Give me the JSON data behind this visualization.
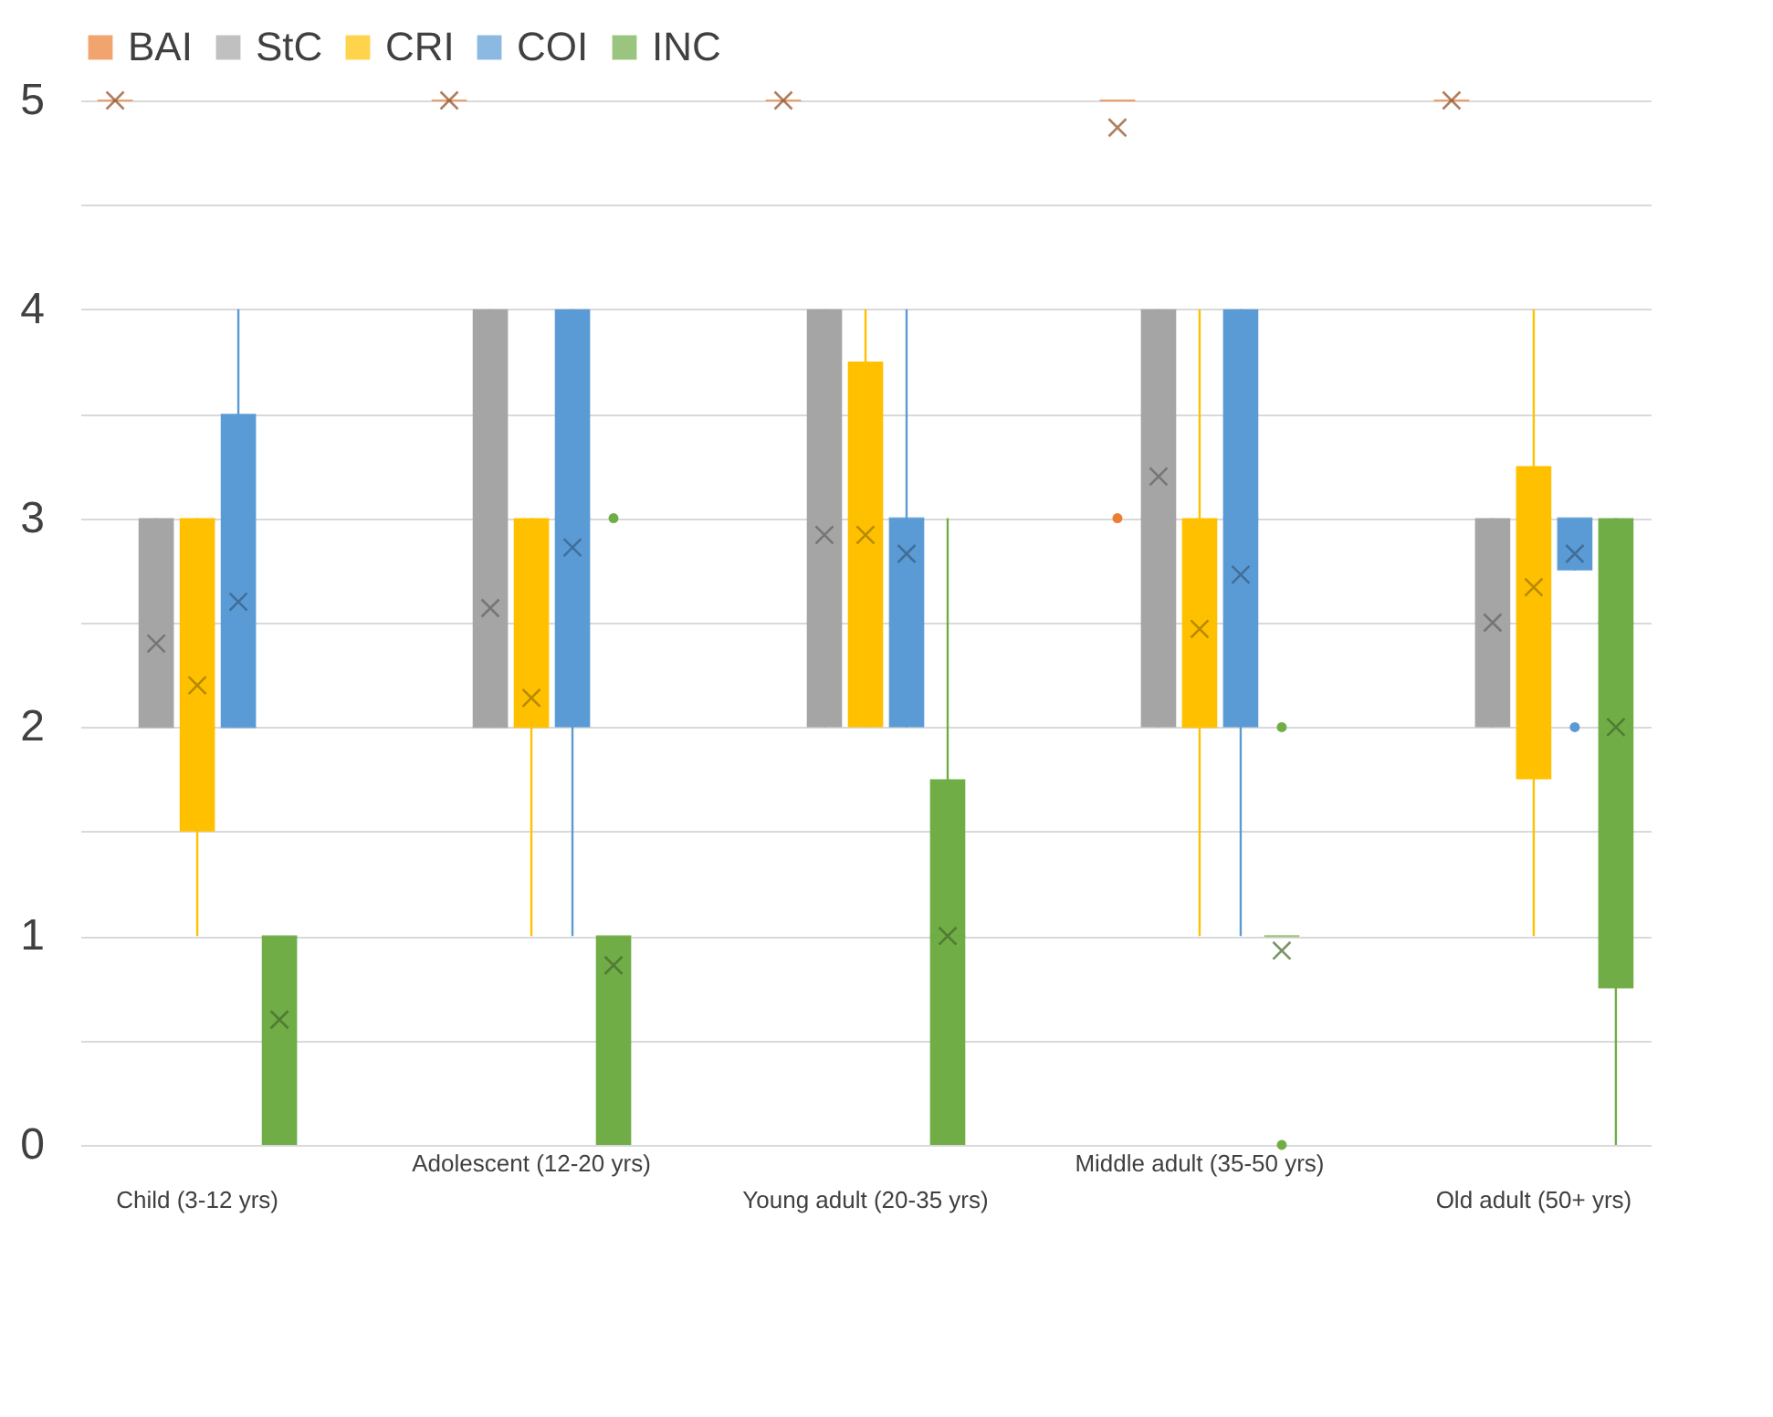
{
  "chart_data": {
    "type": "box",
    "categories": [
      "Child (3-12 yrs)",
      "Adolescent (12-20 yrs)",
      "Young adult (20-35 yrs)",
      "Middle adult  (35-50 yrs)",
      "Old adult  (50+ yrs)"
    ],
    "ylim": [
      0,
      5
    ],
    "yticks": [
      0,
      {
        "value": 0.5,
        "label": null
      },
      1,
      {
        "value": 1.5,
        "label": null
      },
      2,
      {
        "value": 2.5,
        "label": null
      },
      3,
      {
        "value": 3.5,
        "label": null
      },
      4,
      {
        "value": 4.5,
        "label": null
      },
      5
    ],
    "grid": "y",
    "legend": "top",
    "series": [
      {
        "name": "BAI",
        "color": "#ed7d31",
        "boxes": [
          {
            "low": 5,
            "q1": 5,
            "median": 5,
            "q3": 5,
            "high": 5,
            "mean": 5
          },
          {
            "low": 5,
            "q1": 5,
            "median": 5,
            "q3": 5,
            "high": 5,
            "mean": 5
          },
          {
            "low": 5,
            "q1": 5,
            "median": 5,
            "q3": 5,
            "high": 5,
            "mean": 5
          },
          {
            "low": 5,
            "q1": 5,
            "median": 5,
            "q3": 5,
            "high": 5,
            "mean": 4.87,
            "outliers": [
              3
            ]
          },
          {
            "low": 5,
            "q1": 5,
            "median": 5,
            "q3": 5,
            "high": 5,
            "mean": 5
          }
        ]
      },
      {
        "name": "StC",
        "color": "#a5a5a5",
        "boxes": [
          {
            "low": 2,
            "q1": 2,
            "median": 2,
            "q3": 3,
            "high": 3,
            "mean": 2.4
          },
          {
            "low": 2,
            "q1": 2,
            "median": 2,
            "q3": 4,
            "high": 4,
            "mean": 2.57
          },
          {
            "low": 2,
            "q1": 2,
            "median": 2.5,
            "q3": 4,
            "high": 4,
            "mean": 2.92
          },
          {
            "low": 2,
            "q1": 2,
            "median": 3,
            "q3": 4,
            "high": 4,
            "mean": 3.2
          },
          {
            "low": 2,
            "q1": 2,
            "median": 2.5,
            "q3": 3,
            "high": 3,
            "mean": 2.5
          }
        ]
      },
      {
        "name": "CRI",
        "color": "#ffc000",
        "boxes": [
          {
            "low": 1,
            "q1": 1.5,
            "median": 2,
            "q3": 3,
            "high": 3,
            "mean": 2.2
          },
          {
            "low": 1,
            "q1": 2,
            "median": 2,
            "q3": 3,
            "high": 3,
            "mean": 2.14
          },
          {
            "low": 2,
            "q1": 2,
            "median": 3,
            "q3": 3.75,
            "high": 4,
            "mean": 2.92
          },
          {
            "low": 1,
            "q1": 2,
            "median": 2,
            "q3": 3,
            "high": 4,
            "mean": 2.47
          },
          {
            "low": 1,
            "q1": 1.75,
            "median": 3,
            "q3": 3.25,
            "high": 4,
            "mean": 2.67
          }
        ]
      },
      {
        "name": "COI",
        "color": "#5b9bd5",
        "boxes": [
          {
            "low": 2,
            "q1": 2,
            "median": 2,
            "q3": 3.5,
            "high": 4,
            "mean": 2.6
          },
          {
            "low": 1,
            "q1": 2,
            "median": 3,
            "q3": 4,
            "high": 4,
            "mean": 2.86
          },
          {
            "low": 2,
            "q1": 2,
            "median": 3,
            "q3": 3,
            "high": 4,
            "mean": 2.83
          },
          {
            "low": 1,
            "q1": 2,
            "median": 3,
            "q3": 4,
            "high": 4,
            "mean": 2.73
          },
          {
            "low": 2.75,
            "q1": 2.75,
            "median": 3,
            "q3": 3,
            "high": 3,
            "mean": 2.83,
            "outliers": [
              2
            ]
          }
        ]
      },
      {
        "name": "INC",
        "color": "#70ad47",
        "boxes": [
          {
            "low": 0,
            "q1": 0,
            "median": 1,
            "q3": 1,
            "high": 1,
            "mean": 0.6
          },
          {
            "low": 0,
            "q1": 0,
            "median": 1,
            "q3": 1,
            "high": 1,
            "mean": 0.86,
            "outliers": [
              3
            ]
          },
          {
            "low": 0,
            "q1": 0,
            "median": 1,
            "q3": 1.75,
            "high": 3,
            "mean": 1
          },
          {
            "low": 1,
            "q1": 1,
            "median": 1,
            "q3": 1,
            "high": 1,
            "mean": 0.93,
            "outliers": [
              2,
              0
            ]
          },
          {
            "low": 0,
            "q1": 0.75,
            "median": 2.5,
            "q3": 3,
            "high": 3,
            "mean": 2
          }
        ]
      }
    ]
  }
}
